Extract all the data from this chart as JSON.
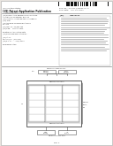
{
  "bg_color": "#e8e4df",
  "page_bg": "#ffffff",
  "barcode_color": "#111111",
  "text_color": "#333333",
  "border_color": "#777777",
  "light_gray": "#bbbbbb",
  "diagram_border": "#555555"
}
